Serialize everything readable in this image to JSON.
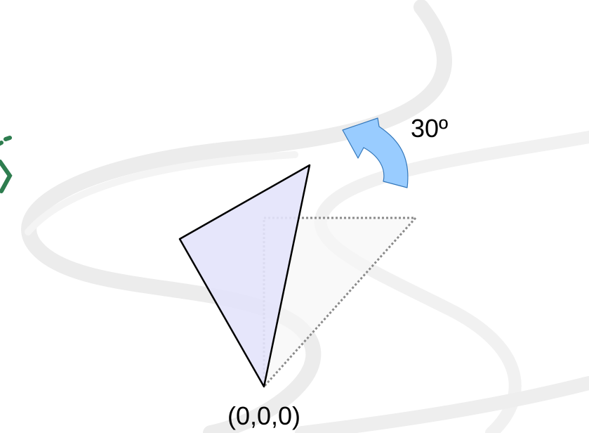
{
  "annotations": {
    "angle": "30º",
    "origin": "(0,0,0)"
  }
}
